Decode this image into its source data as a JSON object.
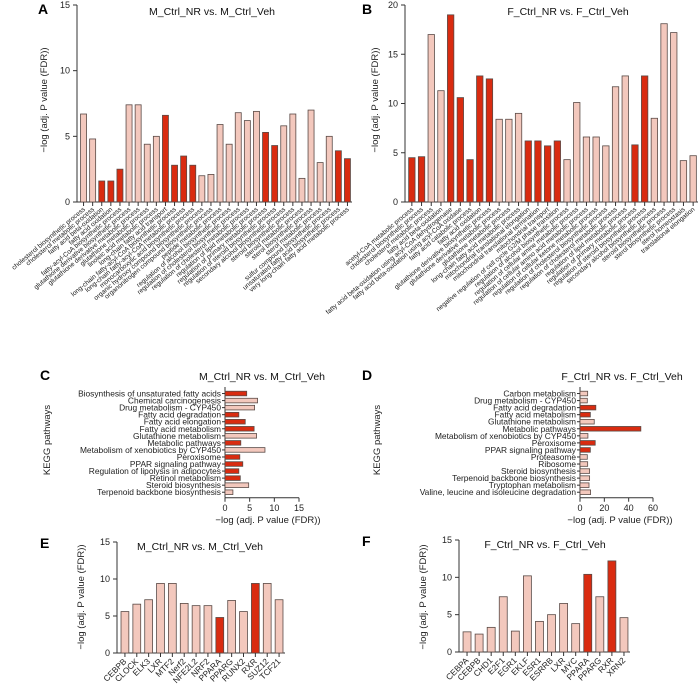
{
  "colors": {
    "normal": "#f3c8bd",
    "highlight": "#d92b10",
    "outline": "#5a4a46"
  },
  "chart_data": [
    {
      "panel": "A",
      "type": "bar",
      "orientation": "vertical",
      "title": "M_Ctrl_NR vs. M_Ctrl_Veh",
      "ylabel": "−log (adj. P value (FDR))",
      "ylim": [
        0,
        15
      ],
      "yticks": [
        0,
        5,
        10,
        15
      ],
      "categories": [
        "cholesterol biosynthetic process",
        "cholesterol metabolic process",
        "fatty acid beta-oxidation",
        "fatty acid oxidation",
        "fatty-acyl-CoA biosynthetic process",
        "glutathione derivative biosynthetic process",
        "glutathione derivative metabolic process",
        "glutathione metabolic process",
        "linoleic acid metabolic process",
        "long-chain fatty acid transport",
        "long-chain fatty-acyl-CoA biosynthetic process",
        "long-chain fatty-acyl-CoA metabolic process",
        "monocarboxylic acid biosynthetic process",
        "organic hydroxy compound biosynthetic process",
        "organonitrogen compound biosynthetic process",
        "peptide metabolic process",
        "regulation of alcohol biosynthetic process",
        "regulation of cholesterol biosynthetic process",
        "regulation of cholesterol metabolic process",
        "regulation of lipid metabolic process",
        "regulation of primary metabolic process",
        "regulation of steroid biosynthetic process",
        "secondary alcohol biosynthetic process",
        "steroid biosynthetic process",
        "steroid metabolic process",
        "sterol biosynthetic process",
        "sterol metabolic process",
        "sulfur compound biosynthetic process",
        "unsaturated fatty acid biosynthetic process",
        "very long-chain fatty acid metabolic process"
      ],
      "values": [
        6.7,
        4.8,
        1.6,
        1.6,
        2.5,
        7.4,
        7.4,
        4.4,
        5.0,
        6.6,
        2.8,
        3.5,
        2.8,
        2.0,
        2.1,
        5.9,
        4.4,
        6.8,
        6.2,
        6.9,
        5.3,
        4.3,
        5.8,
        6.7,
        1.8,
        7.0,
        3.0,
        5.0,
        3.9,
        3.3
      ],
      "highlighted": [
        false,
        false,
        true,
        true,
        true,
        false,
        false,
        false,
        false,
        true,
        true,
        true,
        true,
        false,
        false,
        false,
        false,
        false,
        false,
        false,
        true,
        true,
        false,
        false,
        false,
        false,
        false,
        false,
        true,
        true
      ]
    },
    {
      "panel": "B",
      "type": "bar",
      "orientation": "vertical",
      "title": "F_Ctrl_NR vs. F_Ctrl_Veh",
      "ylabel": "−log (adj. P value (FDR))",
      "ylim": [
        0,
        20
      ],
      "yticks": [
        0,
        5,
        10,
        15,
        20
      ],
      "categories": [
        "acetyl-CoA metabolic process",
        "cholesterol biosynthetic process",
        "cholesterol metabolic process",
        "fatty acid beta-oxidation",
        "fatty acid beta-oxidation using acyl-CoA dehydrogenase",
        "fatty acid beta-oxidation using acyl-CoA oxidase",
        "fatty acid catabolic process",
        "fatty acid oxidation",
        "glutathione derivative biosynthetic process",
        "glutathione derivative metabolic process",
        "glutathione metabolic process",
        "long-chain fatty acid metabolic process",
        "mitochondrial translational elongation",
        "mitochondrial translational termination",
        "mitochondrial transport",
        "negative regulation of cell cycle G2/M phase transition",
        "regulation of alcohol biosynthetic process",
        "regulation of cellular amine metabolic process",
        "regulation of cellular amino acid metabolic process",
        "regulation of cellular ketone metabolic process",
        "regulation of cholesterol biosynthetic process",
        "regulation of cholesterol metabolic process",
        "regulation of lipid metabolic process",
        "regulation of primary metabolic process",
        "regulation of steroid biosynthetic process",
        "secondary alcohol biosynthetic process",
        "steroid biosynthetic process",
        "sterol biosynthetic process",
        "sterol homeostasis",
        "translational elongation"
      ],
      "values": [
        4.5,
        4.6,
        17.0,
        11.3,
        19.0,
        10.6,
        4.3,
        12.8,
        12.5,
        8.4,
        8.4,
        9.0,
        6.2,
        6.2,
        5.7,
        6.2,
        4.3,
        10.1,
        6.6,
        6.6,
        5.7,
        11.7,
        12.8,
        5.8,
        12.8,
        8.5,
        18.1,
        17.2,
        4.2,
        4.7
      ],
      "highlighted": [
        true,
        true,
        false,
        false,
        true,
        true,
        true,
        true,
        true,
        false,
        false,
        false,
        true,
        true,
        true,
        true,
        false,
        false,
        false,
        false,
        false,
        false,
        false,
        true,
        true,
        false,
        false,
        false,
        false,
        false
      ]
    },
    {
      "panel": "C",
      "type": "bar",
      "orientation": "horizontal",
      "title": "M_Ctrl_NR vs. M_Ctrl_Veh",
      "ylabel": "KEGG pathways",
      "xlabel": "−log (adj. P value (FDR))",
      "xlim": [
        0,
        15
      ],
      "xticks": [
        0,
        5,
        10,
        15
      ],
      "categories": [
        "Biosynthesis of unsaturated fatty acids",
        "Chemical carcinogenesis",
        "Drug metabolism - CYP450",
        "Fatty acid degradation",
        "Fatty acid elongation",
        "Fatty acid metabolism",
        "Glutathione metabolism",
        "Metabolic pathways",
        "Metabolism of xenobiotics by CYP450",
        "Peroxisome",
        "PPAR signaling pathway",
        "Regulation of lipolysis in adipocytes",
        "Retinol metabolism",
        "Steroid biosynthesis",
        "Terpenoid backbone biosynthesis"
      ],
      "values": [
        4.4,
        6.6,
        6.0,
        2.8,
        4.1,
        5.9,
        6.4,
        3.2,
        8.1,
        3.0,
        3.6,
        2.8,
        3.1,
        4.8,
        1.6
      ],
      "highlighted": [
        true,
        false,
        false,
        true,
        true,
        true,
        false,
        true,
        false,
        true,
        true,
        true,
        true,
        false,
        false
      ]
    },
    {
      "panel": "D",
      "type": "bar",
      "orientation": "horizontal",
      "title": "F_Ctrl_NR vs. F_Ctrl_Veh",
      "ylabel": "KEGG pathways",
      "xlabel": "−log (adj. P value (FDR))",
      "xlim": [
        0,
        60
      ],
      "xticks": [
        0,
        20,
        40,
        60
      ],
      "categories": [
        "Carbon metabolism",
        "Drug metabolism - CYP450",
        "Fatty acid degradation",
        "Fatty acid metabolism",
        "Glutathione metabolism",
        "Metabolic pathways",
        "Metabolism of xenobiotics by CYP450",
        "Peroxisome",
        "PPAR signaling pathway",
        "Proteasome",
        "Ribosome",
        "Steroid biosynthesis",
        "Terpenoid backbone biosynthesis",
        "Tryptophan metabolism",
        "Valine, leucine and isoleucine degradation"
      ],
      "values": [
        6.3,
        6.0,
        13.0,
        8.5,
        11.7,
        50.0,
        6.5,
        12.5,
        8.5,
        6.0,
        6.3,
        7.9,
        7.9,
        7.4,
        8.7
      ],
      "highlighted": [
        false,
        false,
        true,
        true,
        false,
        true,
        false,
        true,
        true,
        false,
        false,
        false,
        false,
        false,
        false
      ]
    },
    {
      "panel": "E",
      "type": "bar",
      "orientation": "vertical",
      "title": "M_Ctrl_NR vs. M_Ctrl_Veh",
      "ylabel": "−log (adj. P value (FDR))",
      "ylim": [
        0,
        15
      ],
      "yticks": [
        0,
        5,
        10,
        15
      ],
      "categories": [
        "CEBPB",
        "CLOCK",
        "ELK3",
        "LXR",
        "MTF2",
        "Nerf2",
        "NFE2L2",
        "NRF2",
        "PPARA",
        "PPARG",
        "RUNX2",
        "RXR",
        "SUZ12",
        "TCF21"
      ],
      "values": [
        5.6,
        6.6,
        7.2,
        9.4,
        9.4,
        6.7,
        6.4,
        6.4,
        4.8,
        7.1,
        5.6,
        9.4,
        9.4,
        7.2
      ],
      "highlighted": [
        false,
        false,
        false,
        false,
        false,
        false,
        false,
        false,
        true,
        false,
        false,
        true,
        false,
        false
      ]
    },
    {
      "panel": "F",
      "type": "bar",
      "orientation": "vertical",
      "title": "F_Ctrl_NR vs. F_Ctrl_Veh",
      "ylabel": "−log (adj. P value (FDR))",
      "ylim": [
        0,
        15
      ],
      "yticks": [
        0,
        5,
        10,
        15
      ],
      "categories": [
        "CEBPA",
        "CEBPB",
        "CHD1",
        "E2F1",
        "EGR1",
        "EKLF",
        "ESR1",
        "ESRRB",
        "LXR",
        "MYC",
        "PPARA",
        "PPARG",
        "RXR",
        "XRN2"
      ],
      "values": [
        2.7,
        2.4,
        3.3,
        7.4,
        2.8,
        10.2,
        4.1,
        5.0,
        6.5,
        3.8,
        10.4,
        7.4,
        12.2,
        4.6
      ],
      "highlighted": [
        false,
        false,
        false,
        false,
        false,
        false,
        false,
        false,
        false,
        false,
        true,
        false,
        true,
        false
      ]
    }
  ]
}
